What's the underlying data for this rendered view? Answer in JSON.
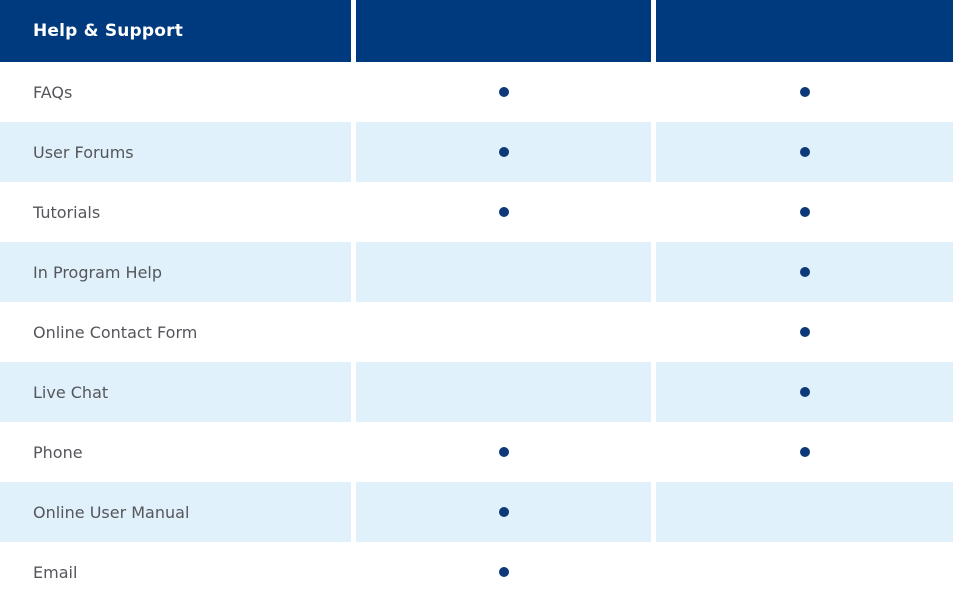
{
  "page": {
    "background": "#ffffff"
  },
  "table": {
    "header": {
      "title": "Help & Support",
      "col2_label": "",
      "col3_label": ""
    },
    "rows": [
      {
        "label": "FAQs",
        "col2": true,
        "col3": true
      },
      {
        "label": "User Forums",
        "col2": true,
        "col3": true
      },
      {
        "label": "Tutorials",
        "col2": true,
        "col3": true
      },
      {
        "label": "In Program Help",
        "col2": false,
        "col3": true
      },
      {
        "label": "Online Contact Form",
        "col2": false,
        "col3": true
      },
      {
        "label": "Live Chat",
        "col2": false,
        "col3": true
      },
      {
        "label": "Phone",
        "col2": true,
        "col3": true
      },
      {
        "label": "Online User Manual",
        "col2": true,
        "col3": false
      },
      {
        "label": "Email",
        "col2": true,
        "col3": false
      }
    ],
    "dot_icon": "filled-circle",
    "colors": {
      "header_bg": "#003a7e",
      "header_text": "#ffffff",
      "row_bg": "#ffffff",
      "row_alt_bg": "#e1f1fc",
      "label_text": "#54565b",
      "dot": "#0e3878",
      "column_gap": "#ffffff"
    }
  }
}
